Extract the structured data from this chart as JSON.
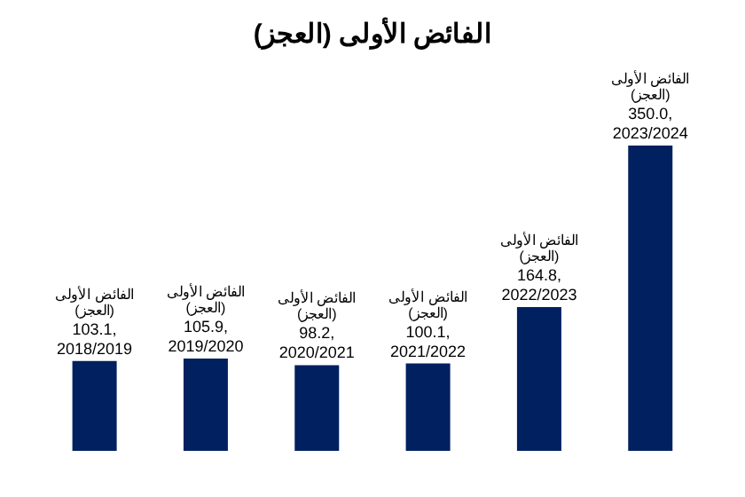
{
  "chart_data": {
    "type": "bar",
    "title": "الفائض الأولى (العجز)",
    "categories": [
      "2018/2019",
      "2019/2020",
      "2020/2021",
      "2021/2022",
      "2022/2023",
      "2023/2024"
    ],
    "series": [
      {
        "name": "الفائض الأولى (العجز)",
        "color": "#002060",
        "values": [
          103.1,
          105.9,
          98.2,
          100.1,
          164.8,
          350.0
        ],
        "value_labels": [
          "103.1,",
          "105.9,",
          "98.2,",
          "100.1,",
          "164.8,",
          "350.0,"
        ]
      }
    ],
    "legend": false
  }
}
